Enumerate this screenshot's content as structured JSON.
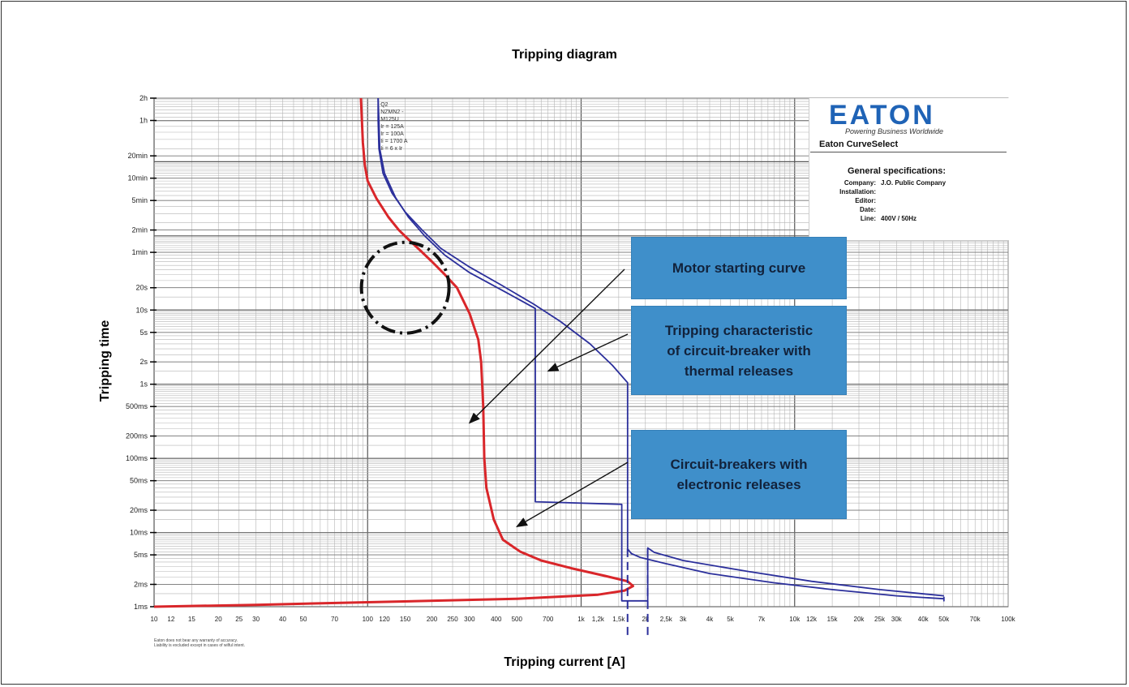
{
  "chart_data": {
    "type": "line",
    "title": "Tripping diagram",
    "xlabel": "Tripping current [A]",
    "ylabel": "Tripping time",
    "xscale": "log",
    "yscale": "log",
    "xlim": [
      10,
      100000
    ],
    "ylim_seconds": [
      0.001,
      7200
    ],
    "x_tick_labels": [
      {
        "v": 10,
        "label": "10"
      },
      {
        "v": 12,
        "label": "12"
      },
      {
        "v": 15,
        "label": "15"
      },
      {
        "v": 20,
        "label": "20"
      },
      {
        "v": 25,
        "label": "25"
      },
      {
        "v": 30,
        "label": "30"
      },
      {
        "v": 40,
        "label": "40"
      },
      {
        "v": 50,
        "label": "50"
      },
      {
        "v": 70,
        "label": "70"
      },
      {
        "v": 100,
        "label": "100"
      },
      {
        "v": 120,
        "label": "120"
      },
      {
        "v": 150,
        "label": "150"
      },
      {
        "v": 200,
        "label": "200"
      },
      {
        "v": 250,
        "label": "250"
      },
      {
        "v": 300,
        "label": "300"
      },
      {
        "v": 400,
        "label": "400"
      },
      {
        "v": 500,
        "label": "500"
      },
      {
        "v": 700,
        "label": "700"
      },
      {
        "v": 1000,
        "label": "1k"
      },
      {
        "v": 1200,
        "label": "1,2k"
      },
      {
        "v": 1500,
        "label": "1,5k"
      },
      {
        "v": 2000,
        "label": "2k"
      },
      {
        "v": 2500,
        "label": "2,5k"
      },
      {
        "v": 3000,
        "label": "3k"
      },
      {
        "v": 4000,
        "label": "4k"
      },
      {
        "v": 5000,
        "label": "5k"
      },
      {
        "v": 7000,
        "label": "7k"
      },
      {
        "v": 10000,
        "label": "10k"
      },
      {
        "v": 12000,
        "label": "12k"
      },
      {
        "v": 15000,
        "label": "15k"
      },
      {
        "v": 20000,
        "label": "20k"
      },
      {
        "v": 25000,
        "label": "25k"
      },
      {
        "v": 30000,
        "label": "30k"
      },
      {
        "v": 40000,
        "label": "40k"
      },
      {
        "v": 50000,
        "label": "50k"
      },
      {
        "v": 70000,
        "label": "70k"
      },
      {
        "v": 100000,
        "label": "100k"
      }
    ],
    "y_tick_labels": [
      {
        "v": 7200,
        "label": "2h"
      },
      {
        "v": 3600,
        "label": "1h"
      },
      {
        "v": 1200,
        "label": "20min"
      },
      {
        "v": 600,
        "label": "10min"
      },
      {
        "v": 300,
        "label": "5min"
      },
      {
        "v": 120,
        "label": "2min"
      },
      {
        "v": 60,
        "label": "1min"
      },
      {
        "v": 20,
        "label": "20s"
      },
      {
        "v": 10,
        "label": "10s"
      },
      {
        "v": 5,
        "label": "5s"
      },
      {
        "v": 2,
        "label": "2s"
      },
      {
        "v": 1,
        "label": "1s"
      },
      {
        "v": 0.5,
        "label": "500ms"
      },
      {
        "v": 0.2,
        "label": "200ms"
      },
      {
        "v": 0.1,
        "label": "100ms"
      },
      {
        "v": 0.05,
        "label": "50ms"
      },
      {
        "v": 0.02,
        "label": "20ms"
      },
      {
        "v": 0.01,
        "label": "10ms"
      },
      {
        "v": 0.005,
        "label": "5ms"
      },
      {
        "v": 0.002,
        "label": "2ms"
      },
      {
        "v": 0.001,
        "label": "1ms"
      }
    ],
    "grid": true,
    "series": [
      {
        "color": "#d9262a",
        "points": [
          [
            93,
            7200
          ],
          [
            94,
            3600
          ],
          [
            95,
            1800
          ],
          [
            97,
            900
          ],
          [
            100,
            550
          ],
          [
            110,
            320
          ],
          [
            125,
            180
          ],
          [
            140,
            120
          ],
          [
            155,
            90
          ],
          [
            175,
            65
          ],
          [
            200,
            45
          ],
          [
            230,
            30
          ],
          [
            262,
            20
          ],
          [
            300,
            9
          ],
          [
            330,
            4
          ],
          [
            340,
            2
          ],
          [
            348,
            0.5
          ],
          [
            352,
            0.1
          ],
          [
            360,
            0.04
          ],
          [
            390,
            0.015
          ],
          [
            430,
            0.008
          ],
          [
            520,
            0.0055
          ],
          [
            650,
            0.0042
          ],
          [
            900,
            0.0033
          ],
          [
            1300,
            0.0026
          ],
          [
            1650,
            0.0022
          ],
          [
            1750,
            0.0019
          ],
          [
            1600,
            0.00165
          ],
          [
            1200,
            0.00145
          ],
          [
            500,
            0.00128
          ],
          [
            100,
            0.00115
          ],
          [
            30,
            0.00106
          ],
          [
            10,
            0.001
          ]
        ]
      },
      {
        "color": "#2b2f9b",
        "points": [
          [
            112,
            7200
          ],
          [
            112,
            3600
          ],
          [
            113,
            1500
          ],
          [
            118,
            700
          ],
          [
            130,
            380
          ],
          [
            150,
            210
          ],
          [
            180,
            120
          ],
          [
            220,
            68
          ],
          [
            300,
            38
          ],
          [
            420,
            22
          ],
          [
            600,
            12
          ],
          [
            800,
            7
          ],
          [
            1100,
            3.5
          ],
          [
            1400,
            1.8
          ],
          [
            1650,
            1.05
          ],
          [
            1650,
            0.006
          ],
          [
            1720,
            0.0052
          ],
          [
            1900,
            0.0046
          ],
          [
            2500,
            0.0038
          ],
          [
            4000,
            0.0028
          ],
          [
            8000,
            0.0021
          ],
          [
            15000,
            0.0017
          ],
          [
            30000,
            0.0014
          ],
          [
            50000,
            0.00128
          ],
          [
            50000,
            0.0012
          ],
          [
            50000,
            0.00136
          ]
        ]
      },
      {
        "color": "#2b2f9b",
        "points": [
          [
            112,
            7200
          ],
          [
            113,
            3600
          ],
          [
            114,
            1500
          ],
          [
            120,
            700
          ],
          [
            135,
            330
          ],
          [
            155,
            180
          ],
          [
            185,
            100
          ],
          [
            230,
            55
          ],
          [
            300,
            32
          ],
          [
            450,
            17
          ],
          [
            610,
            10.5
          ],
          [
            610,
            0.026
          ],
          [
            1550,
            0.024
          ],
          [
            1550,
            0.0012
          ],
          [
            2050,
            0.0012
          ],
          [
            2050,
            0.0062
          ],
          [
            2200,
            0.0054
          ],
          [
            3000,
            0.0042
          ],
          [
            6000,
            0.003
          ],
          [
            12000,
            0.0022
          ],
          [
            25000,
            0.0017
          ],
          [
            50000,
            0.0014
          ]
        ]
      }
    ],
    "curve_annotation": [
      "Q2",
      "NZMN2 -",
      "M125U",
      "Ir = 125A",
      "Ir = 100A",
      "Ii = 1700 A",
      "Ii = 6 x Ir"
    ],
    "annotations": [
      {
        "text_lines": [
          "Motor starting curve"
        ],
        "points_to": [
          300,
          0.3
        ]
      },
      {
        "text_lines": [
          "Tripping characteristic",
          "of circuit-breaker with",
          "thermal releases"
        ],
        "points_to": [
          700,
          1.5
        ]
      },
      {
        "text_lines": [
          "Circuit-breakers with",
          "electronic releases"
        ],
        "points_to": [
          500,
          0.012
        ]
      }
    ],
    "highlight_circle": {
      "center": [
        150,
        20
      ],
      "style": "dash-dot"
    }
  },
  "brand": {
    "logo_text": "EATON",
    "tagline": "Powering Business Worldwide",
    "product": "Eaton CurveSelect",
    "logo_color": "#1f63b6"
  },
  "specs": {
    "title": "General specifications:",
    "rows": [
      {
        "label": "Company:",
        "value": "J.O. Public Company"
      },
      {
        "label": "Installation:",
        "value": ""
      },
      {
        "label": "Editor:",
        "value": ""
      },
      {
        "label": "Date:",
        "value": ""
      },
      {
        "label": "Line:",
        "value": "400V / 50Hz"
      }
    ]
  },
  "disclaimer": {
    "line1": "Eaton does not bear any warranty of accuracy.",
    "line2": "Liability is excluded except in cases of wilful intent."
  },
  "colors": {
    "callout_bg": "#3f8fca",
    "red_curve": "#d9262a",
    "blue_curve": "#2b2f9b"
  }
}
